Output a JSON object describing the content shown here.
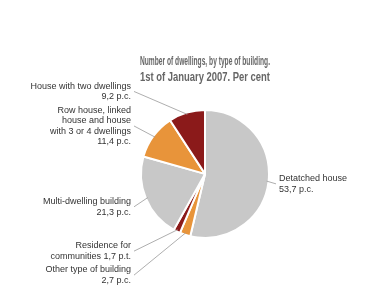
{
  "chart_data": {
    "type": "pie",
    "title": "Number of dwellings, by type of building.",
    "subtitle": "1st of January 2007. Per cent",
    "categories": [
      "Detatched house\n53,7 p.c.",
      "Other type of building\n2,7 p.c.",
      "Residence for\ncommunities 1,7 p.t.",
      "Multi-dwelling building\n21,3 p.c.",
      "Row house, linked\nhouse and house\nwith 3 or 4 dwellings\n11,4 p.c.",
      "House with two dwellings\n9,2 p.c."
    ],
    "values": [
      53.7,
      2.7,
      1.7,
      21.3,
      11.4,
      9.2
    ],
    "colors": [
      "#c8c8c8",
      "#e8943a",
      "#8b1a1a",
      "#c8c8c8",
      "#e8943a",
      "#8b1a1a"
    ]
  }
}
